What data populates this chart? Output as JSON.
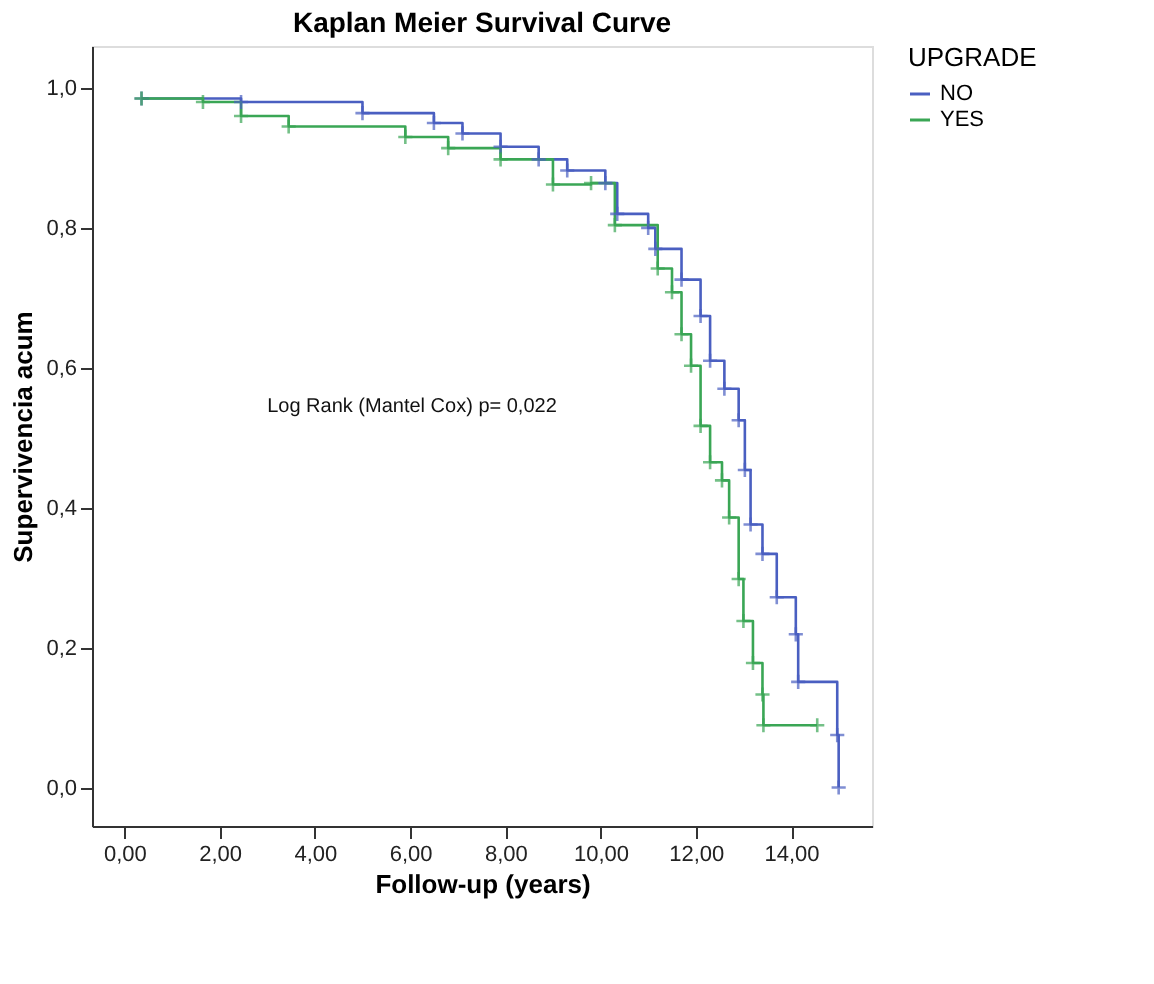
{
  "chart_data": {
    "type": "step",
    "title": "Kaplan Meier Survival Curve",
    "xlabel": "Follow-up (years)",
    "ylabel": "Supervivencia acum",
    "legend_title": "UPGRADE",
    "xlim": [
      -0.68,
      15.7
    ],
    "ylim": [
      -0.055,
      1.06
    ],
    "xticks": [
      {
        "value": 0,
        "label": "0,00"
      },
      {
        "value": 2,
        "label": "2,00"
      },
      {
        "value": 4,
        "label": "4,00"
      },
      {
        "value": 6,
        "label": "6,00"
      },
      {
        "value": 8,
        "label": "8,00"
      },
      {
        "value": 10,
        "label": "10,00"
      },
      {
        "value": 12,
        "label": "12,00"
      },
      {
        "value": 14,
        "label": "14,00"
      }
    ],
    "yticks": [
      {
        "value": 0,
        "label": "0,0"
      },
      {
        "value": 0.2,
        "label": "0,2"
      },
      {
        "value": 0.4,
        "label": "0,4"
      },
      {
        "value": 0.6,
        "label": "0,6"
      },
      {
        "value": 0.8,
        "label": "0,8"
      },
      {
        "value": 1,
        "label": "1,0"
      }
    ],
    "grid": false,
    "legend": "top right",
    "marker": "cross",
    "line_style": "solid",
    "annotations": [
      "Log Rank (Mantel Cox) p= 0,022"
    ],
    "series": [
      {
        "name": "NO",
        "color": "#4a5fc1",
        "x": [
          0.36,
          2.45,
          5.0,
          6.5,
          7.1,
          7.9,
          8.7,
          9.3,
          10.1,
          10.35,
          11.0,
          11.15,
          11.7,
          12.1,
          12.3,
          12.6,
          12.9,
          13.03,
          13.15,
          13.4,
          13.7,
          14.1,
          14.15,
          14.97,
          15.0
        ],
        "values": [
          0.985,
          0.98,
          0.964,
          0.95,
          0.935,
          0.916,
          0.898,
          0.882,
          0.864,
          0.82,
          0.8,
          0.77,
          0.726,
          0.674,
          0.61,
          0.57,
          0.525,
          0.454,
          0.376,
          0.334,
          0.272,
          0.219,
          0.151,
          0.075,
          0.0
        ]
      },
      {
        "name": "YES",
        "color": "#3aa655",
        "x": [
          0.36,
          1.65,
          2.45,
          3.45,
          5.9,
          6.8,
          7.9,
          9.0,
          9.8,
          10.3,
          11.2,
          11.5,
          11.7,
          11.9,
          12.1,
          12.3,
          12.55,
          12.7,
          12.9,
          13.0,
          13.2,
          13.4,
          13.42,
          14.55
        ],
        "values": [
          0.985,
          0.98,
          0.96,
          0.945,
          0.93,
          0.914,
          0.898,
          0.862,
          0.864,
          0.804,
          0.742,
          0.708,
          0.648,
          0.603,
          0.517,
          0.465,
          0.439,
          0.386,
          0.298,
          0.238,
          0.178,
          0.133,
          0.089,
          0.089
        ]
      }
    ]
  }
}
